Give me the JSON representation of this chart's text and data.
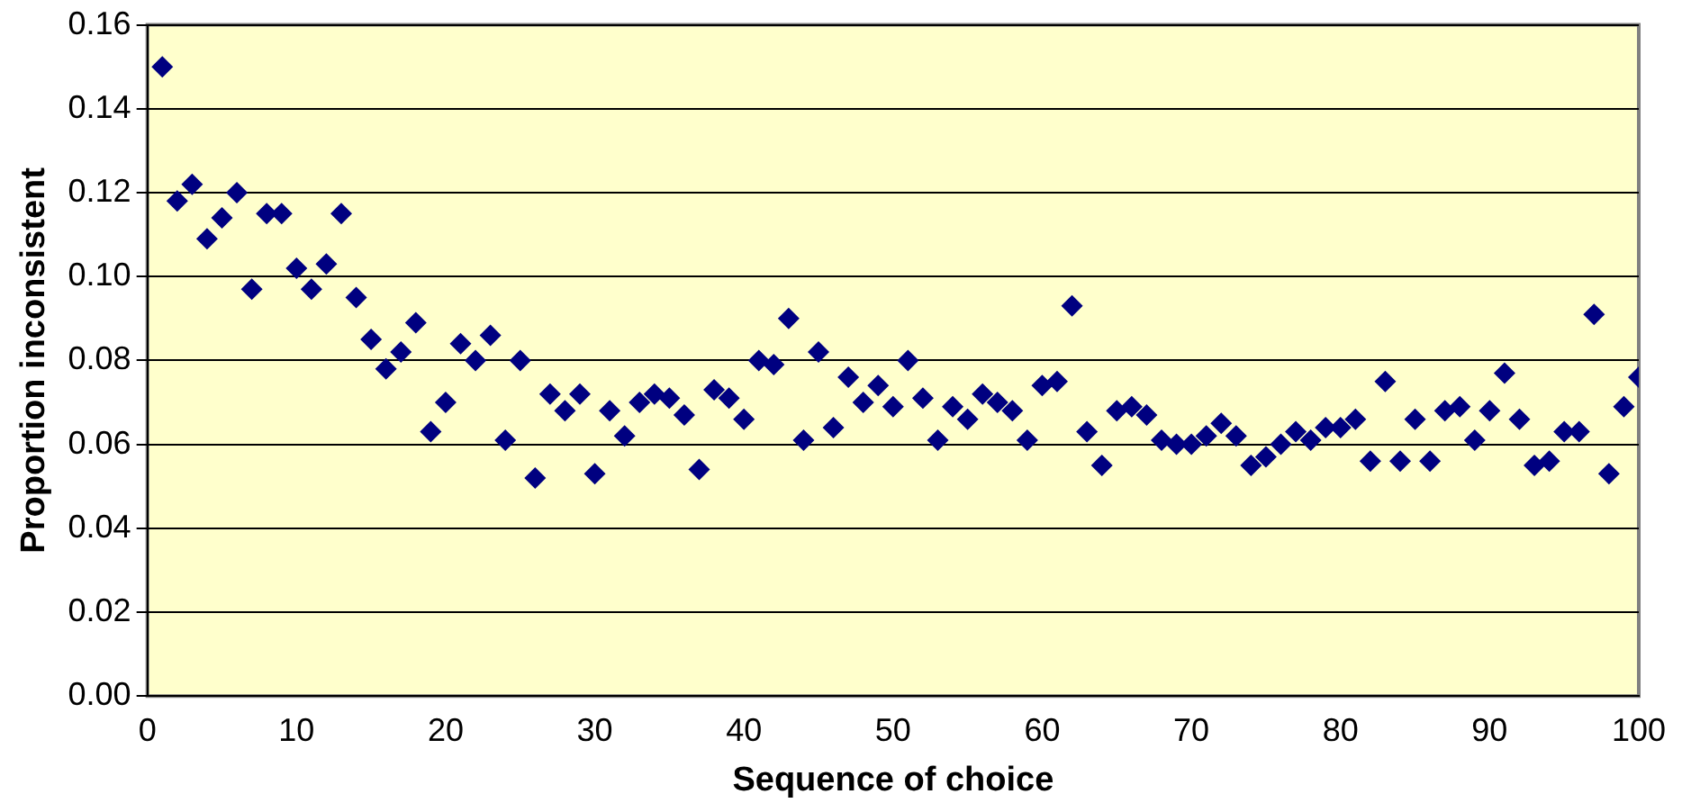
{
  "chart_data": {
    "type": "scatter",
    "xlabel": "Sequence of choice",
    "ylabel": "Proportion inconsistent",
    "x": [
      1,
      2,
      3,
      4,
      5,
      6,
      7,
      8,
      9,
      10,
      11,
      12,
      13,
      14,
      15,
      16,
      17,
      18,
      19,
      20,
      21,
      22,
      23,
      24,
      25,
      26,
      27,
      28,
      29,
      30,
      31,
      32,
      33,
      34,
      35,
      36,
      37,
      38,
      39,
      40,
      41,
      42,
      43,
      44,
      45,
      46,
      47,
      48,
      49,
      50,
      51,
      52,
      53,
      54,
      55,
      56,
      57,
      58,
      59,
      60,
      61,
      62,
      63,
      64,
      65,
      66,
      67,
      68,
      69,
      70,
      71,
      72,
      73,
      74,
      75,
      76,
      77,
      78,
      79,
      80,
      81,
      82,
      83,
      84,
      85,
      86,
      87,
      88,
      89,
      90,
      91,
      92,
      93,
      94,
      95,
      96,
      97,
      98,
      99,
      100
    ],
    "series": [
      {
        "color": "#000080",
        "values": [
          0.15,
          0.118,
          0.122,
          0.109,
          0.114,
          0.12,
          0.097,
          0.115,
          0.115,
          0.102,
          0.097,
          0.103,
          0.115,
          0.095,
          0.085,
          0.078,
          0.082,
          0.089,
          0.063,
          0.07,
          0.084,
          0.08,
          0.086,
          0.061,
          0.08,
          0.052,
          0.072,
          0.068,
          0.072,
          0.053,
          0.068,
          0.062,
          0.07,
          0.072,
          0.071,
          0.067,
          0.054,
          0.073,
          0.071,
          0.066,
          0.08,
          0.079,
          0.09,
          0.061,
          0.082,
          0.064,
          0.076,
          0.07,
          0.074,
          0.069,
          0.08,
          0.071,
          0.061,
          0.069,
          0.066,
          0.072,
          0.07,
          0.068,
          0.061,
          0.074,
          0.075,
          0.093,
          0.063,
          0.055,
          0.068,
          0.069,
          0.067,
          0.061,
          0.06,
          0.06,
          0.062,
          0.065,
          0.062,
          0.055,
          0.057,
          0.06,
          0.063,
          0.061,
          0.064,
          0.064,
          0.066,
          0.056,
          0.075,
          0.056,
          0.066,
          0.056,
          0.068,
          0.069,
          0.061,
          0.068,
          0.077,
          0.066,
          0.055,
          0.056,
          0.063,
          0.063,
          0.091,
          0.053,
          0.069,
          0.076
        ]
      }
    ],
    "xlim": [
      0,
      100
    ],
    "xticks": [
      0,
      10,
      20,
      30,
      40,
      50,
      60,
      70,
      80,
      90,
      100
    ],
    "ylim": [
      0,
      0.16
    ],
    "yticks": [
      {
        "value": 0,
        "label": "0.00"
      },
      {
        "value": 0.02,
        "label": "0.02"
      },
      {
        "value": 0.04,
        "label": "0.04"
      },
      {
        "value": 0.06,
        "label": "0.06"
      },
      {
        "value": 0.08,
        "label": "0.08"
      },
      {
        "value": 0.1,
        "label": "0.10"
      },
      {
        "value": 0.12,
        "label": "0.12"
      },
      {
        "value": 0.14,
        "label": "0.14"
      },
      {
        "value": 0.16,
        "label": "0.16"
      }
    ],
    "grid": "y",
    "legend": false,
    "marker": "diamond"
  }
}
